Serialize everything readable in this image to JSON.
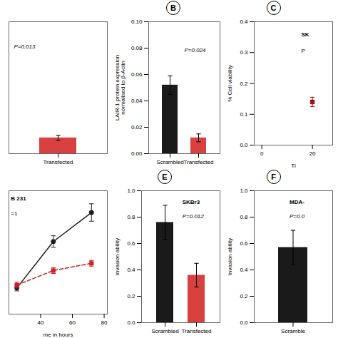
{
  "chart_data": [
    {
      "type": "bar",
      "categories": [
        "Transfected"
      ],
      "values": [
        0.012
      ],
      "errors": [
        0.002
      ],
      "color": "#d94040",
      "ylim": [
        0,
        0.1
      ],
      "tick_labels": "x",
      "annotations": [
        "P=0.013"
      ]
    },
    {
      "type": "bar",
      "title": "B",
      "categories": [
        "Scrambled",
        "Transfected"
      ],
      "values": [
        0.052,
        0.012
      ],
      "errors": [
        0.007,
        0.003
      ],
      "colors": [
        "#1a1a1a",
        "#d94040"
      ],
      "ylabel": "LAIR-1 protein expression\nnormalised to β-Actin",
      "ylim": [
        0,
        0.1
      ],
      "yticks": [
        {
          "value": 0,
          "label": "0.00"
        },
        0.02,
        0.04,
        0.06,
        0.08,
        {
          "value": 0.1,
          "label": "0.10"
        }
      ],
      "annotations": [
        "P=0.024"
      ]
    },
    {
      "type": "scatter",
      "title": "C",
      "x": [
        20
      ],
      "values": [
        0.14
      ],
      "errors": [
        0.015
      ],
      "color": "#cc0000",
      "marker": "square",
      "xlabel": "Ti",
      "ylabel": "% Cell viability",
      "xlim": [
        -3,
        28
      ],
      "xticks": [
        0,
        20
      ],
      "ylim": [
        0.0,
        0.4
      ],
      "yticks": [
        {
          "value": 0,
          "label": "0.0"
        },
        0.1,
        0.2,
        0.3,
        0.4
      ],
      "annotations": [
        "SK",
        "P"
      ]
    },
    {
      "type": "line",
      "x": [
        25,
        48,
        72
      ],
      "series": [
        {
          "color": "#1a1a1a",
          "values": [
            0.18,
            0.5,
            0.7
          ],
          "errors": [
            0.02,
            0.04,
            0.06
          ],
          "marker": "circle",
          "line_style": "solid"
        },
        {
          "color": "#cc2222",
          "values": [
            0.2,
            0.3,
            0.35
          ],
          "errors": [
            0.02,
            0.02,
            0.02
          ],
          "marker": "square",
          "line_style": "dashed"
        }
      ],
      "xlabel": "me in hours",
      "xlim": [
        20,
        82
      ],
      "xticks": [
        40,
        60,
        80
      ],
      "ylim": [
        0,
        0.85
      ],
      "tick_labels": "x",
      "annotations": [
        "B 231",
        "=1"
      ]
    },
    {
      "type": "bar",
      "title": "E",
      "categories": [
        "Scrambled",
        "Transfected"
      ],
      "values": [
        0.76,
        0.36
      ],
      "errors": [
        0.13,
        0.09
      ],
      "colors": [
        "#1a1a1a",
        "#d94040"
      ],
      "ylabel": "Invasion ability",
      "ylim": [
        0,
        1.0
      ],
      "yticks": [
        {
          "value": 0,
          "label": "0.0"
        },
        0.2,
        0.4,
        0.6,
        0.8,
        {
          "value": 1,
          "label": "1.0"
        }
      ],
      "annotations": [
        "SKBr3",
        "P=0.012"
      ]
    },
    {
      "type": "bar",
      "title": "F",
      "categories": [
        "Scramble"
      ],
      "values": [
        0.57
      ],
      "errors": [
        0.13
      ],
      "color": "#1a1a1a",
      "ylabel": "Invasion ability",
      "ylim": [
        0,
        1.0
      ],
      "yticks": [
        {
          "value": 0,
          "label": "0.0"
        },
        0.2,
        0.4,
        0.6,
        0.8,
        {
          "value": 1,
          "label": "1.0"
        }
      ],
      "annotations": [
        "MDA-",
        "P=0.0"
      ]
    }
  ]
}
